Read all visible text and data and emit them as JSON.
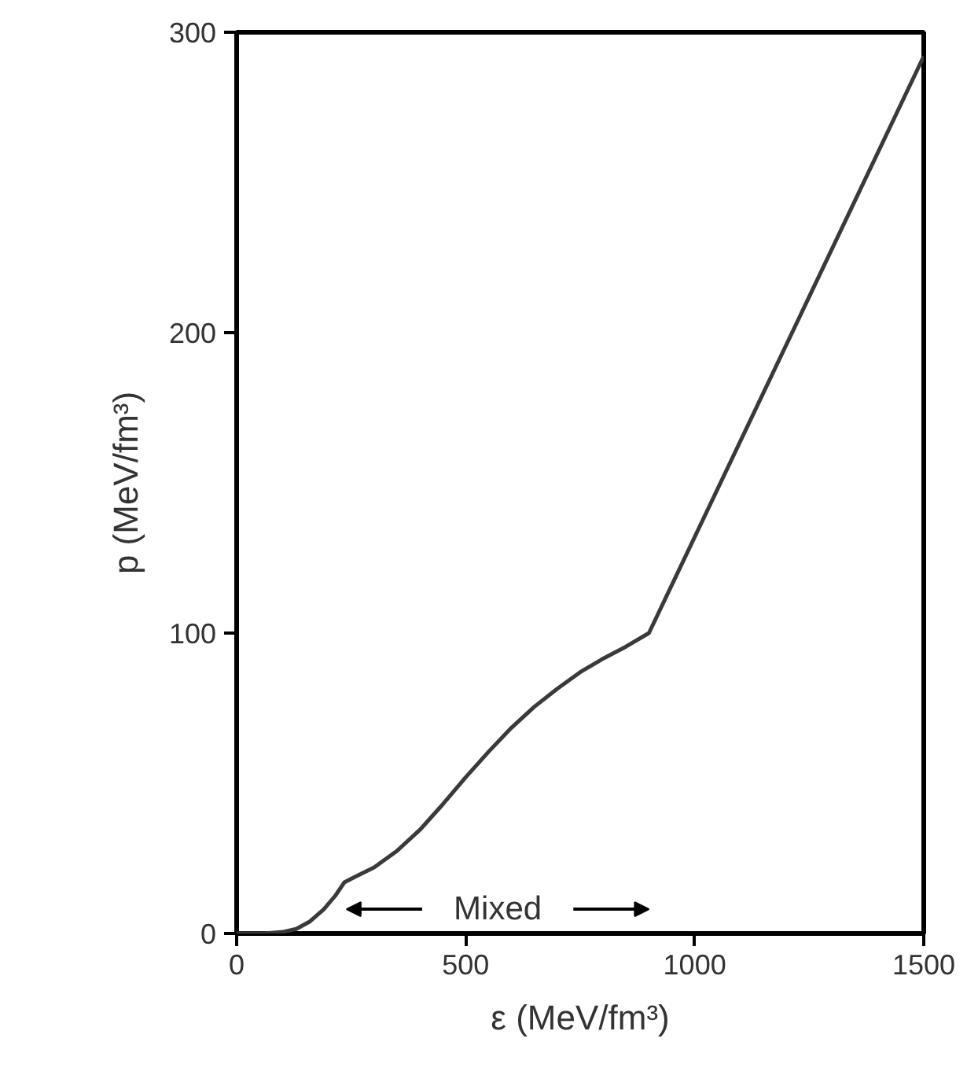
{
  "chart_data": {
    "type": "line",
    "xlabel": "ε (MeV/fm³)",
    "ylabel": "p (MeV/fm³)",
    "x": [
      0,
      60,
      100,
      130,
      160,
      190,
      215,
      235,
      260,
      300,
      350,
      400,
      450,
      500,
      550,
      600,
      650,
      700,
      750,
      800,
      850,
      900,
      1500
    ],
    "values": [
      0,
      0,
      0.5,
      1.5,
      4,
      8,
      12.5,
      17,
      19,
      22,
      27.5,
      34.5,
      43,
      52,
      60.5,
      68.5,
      75.5,
      81.5,
      87,
      91.5,
      95.5,
      100,
      292
    ],
    "color": "#3a3a3a",
    "xlim": [
      0,
      1500
    ],
    "ylim": [
      0,
      300
    ],
    "xticks": [
      0,
      500,
      1000,
      1500
    ],
    "yticks": [
      0,
      100,
      200,
      300
    ],
    "grid": false,
    "annotations": [
      "Mixed"
    ]
  }
}
